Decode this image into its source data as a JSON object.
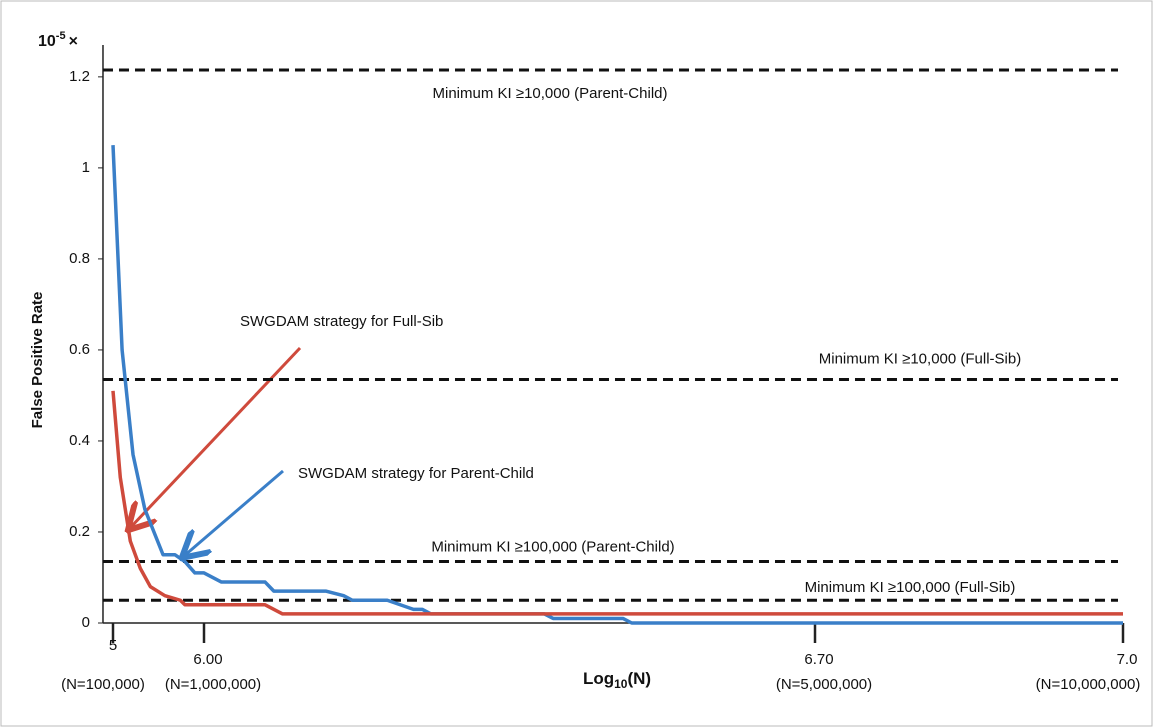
{
  "chart_data": {
    "type": "line",
    "multiplier_parts": [
      "10",
      "-5",
      "×"
    ],
    "y_label": "False Positive Rate",
    "x_label_parts": [
      "Log",
      "10",
      "(N)"
    ],
    "xlim": [
      4.89,
      7
    ],
    "xticks": [
      {
        "value": 5,
        "label": "5"
      },
      {
        "value": 6,
        "label": "6.00"
      },
      {
        "value": 6.7,
        "label": "6.70"
      },
      {
        "value": 7,
        "label": "7.0"
      }
    ],
    "xtick_notes": [
      "(N=100,000)",
      "(N=1,000,000)",
      "(N=5,000,000)",
      "(N=10,000,000)"
    ],
    "ylim": [
      0,
      1.27
    ],
    "yticks": [
      0,
      0.2,
      0.4,
      0.6,
      0.8,
      1,
      1.2
    ],
    "series": [
      {
        "name": "SWGDAM strategy for Parent-Child",
        "color": "#3a7fc8",
        "x": [
          5,
          5.1,
          5.22,
          5.35,
          5.55,
          5.68,
          5.79,
          5.9,
          6,
          6.02,
          6.07,
          6.08,
          6.14,
          6.16,
          6.17,
          6.21,
          6.24,
          6.25,
          6.26,
          6.39,
          6.4,
          6.48,
          6.49,
          7
        ],
        "values": [
          1.05,
          0.6,
          0.37,
          0.25,
          0.15,
          0.15,
          0.135,
          0.11,
          0.11,
          0.09,
          0.09,
          0.07,
          0.07,
          0.06,
          0.05,
          0.05,
          0.03,
          0.03,
          0.02,
          0.02,
          0.01,
          0.01,
          0,
          0
        ]
      },
      {
        "name": "SWGDAM strategy for Full-Sib",
        "color": "#cf4a3c",
        "x": [
          5,
          5.08,
          5.19,
          5.3,
          5.41,
          5.57,
          5.74,
          5.79,
          6.07,
          6.09,
          7
        ],
        "values": [
          0.51,
          0.32,
          0.18,
          0.12,
          0.08,
          0.06,
          0.05,
          0.04,
          0.04,
          0.02,
          0.02
        ]
      }
    ],
    "reference_lines": [
      {
        "value": 1.215,
        "label": "Minimum KI ≥10,000 (Parent-Child)"
      },
      {
        "value": 0.535,
        "label": "Minimum KI ≥10,000 (Full-Sib)"
      },
      {
        "value": 0.135,
        "label": "Minimum KI ≥100,000 (Parent-Child)"
      },
      {
        "value": 0.05,
        "label": "Minimum KI ≥100,000 (Full-Sib)"
      }
    ]
  }
}
